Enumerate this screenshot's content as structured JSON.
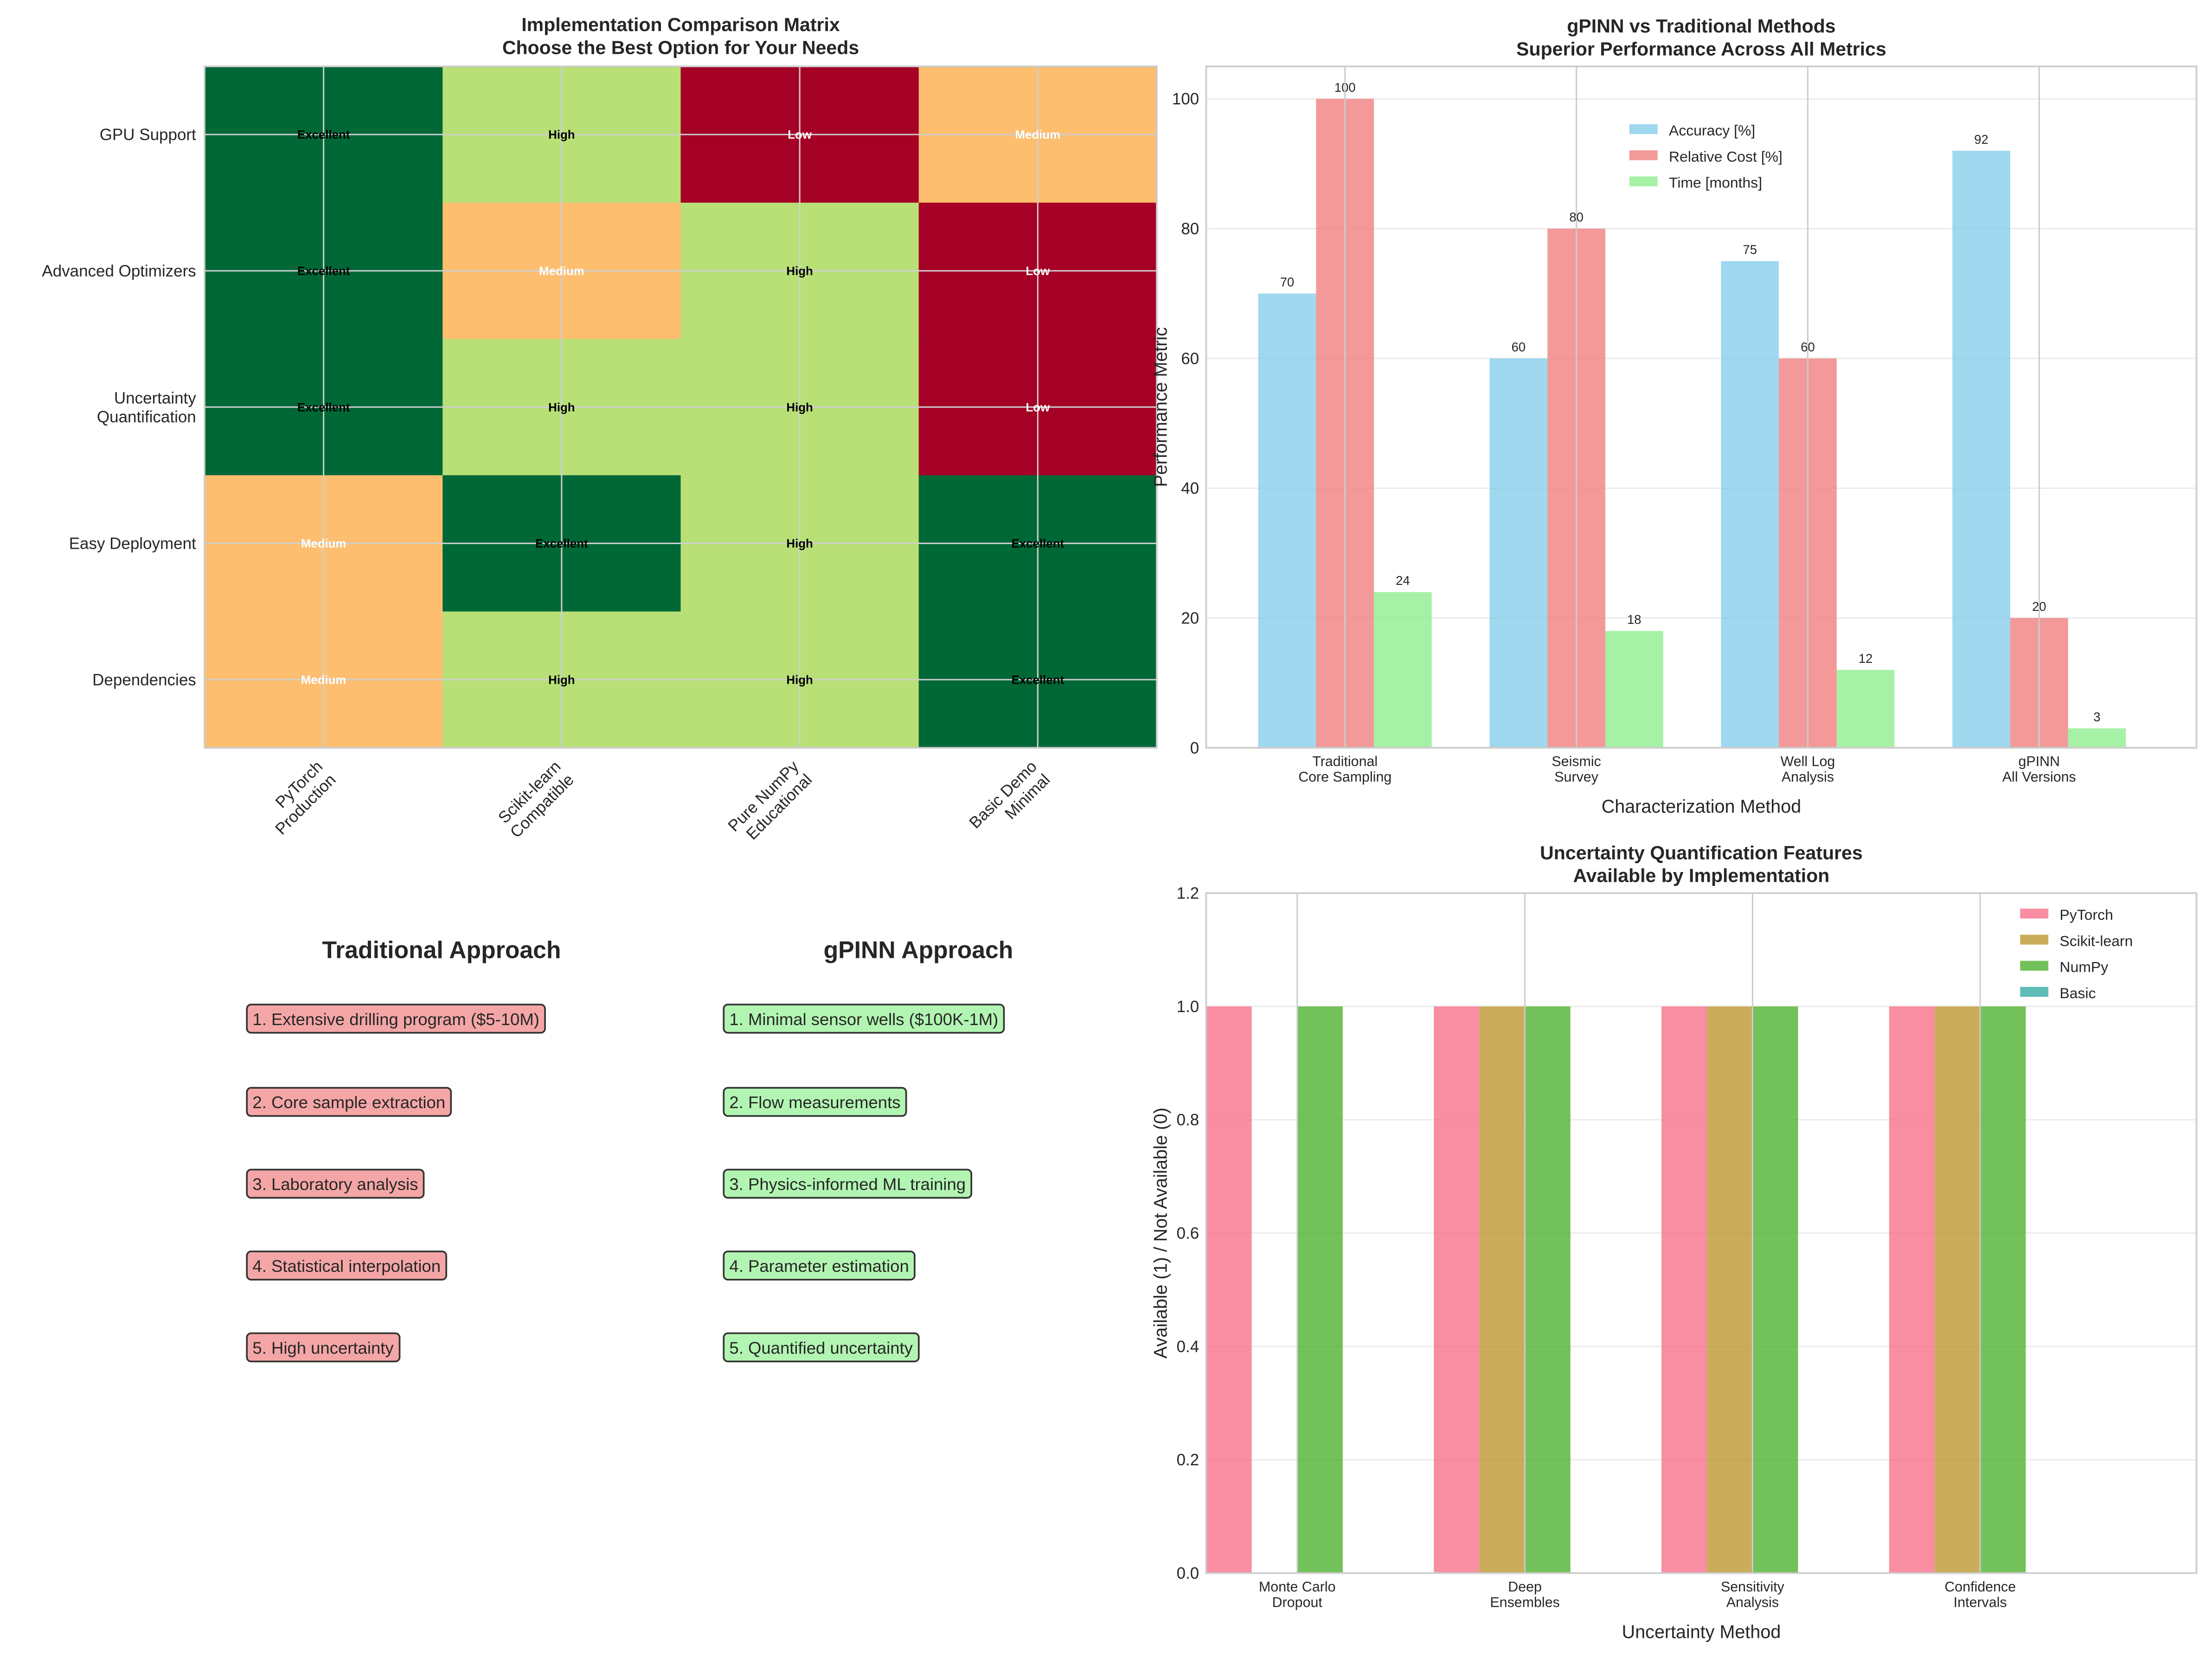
{
  "chart_data": [
    {
      "type": "heatmap",
      "title": "Implementation Comparison Matrix\nChoose the Best Option for Your Needs",
      "rows": [
        "GPU Support",
        "Advanced Optimizers",
        "Uncertainty\nQuantification",
        "Easy Deployment",
        "Dependencies"
      ],
      "columns": [
        "PyTorch\nProduction",
        "Scikit-learn\nCompatible",
        "Pure NumPy\nEducational",
        "Basic Demo\nMinimal"
      ],
      "cells": [
        [
          "Excellent",
          "High",
          "Low",
          "Medium"
        ],
        [
          "Excellent",
          "Medium",
          "High",
          "Low"
        ],
        [
          "Excellent",
          "High",
          "High",
          "Low"
        ],
        [
          "Medium",
          "Excellent",
          "High",
          "Excellent"
        ],
        [
          "Medium",
          "High",
          "High",
          "Excellent"
        ]
      ],
      "colormap": "RdYlGn",
      "level_colors": {
        "Low": "#a50026",
        "Medium": "#fdbe6f",
        "High": "#b8e076",
        "Excellent": "#006837"
      },
      "level_text_colors": {
        "Low": "#ffffff",
        "Medium": "#ffffff",
        "High": "#000000",
        "Excellent": "#000000"
      },
      "grid": true
    },
    {
      "type": "bar",
      "title": "gPINN vs Traditional Methods\nSuperior Performance Across All Metrics",
      "xlabel": "Characterization Method",
      "ylabel": "Performance Metric",
      "categories": [
        "Traditional\nCore Sampling",
        "Seismic\nSurvey",
        "Well Log\nAnalysis",
        "gPINN\nAll Versions"
      ],
      "series": [
        {
          "name": "Accuracy [%]",
          "values": [
            70,
            60,
            75,
            92
          ],
          "color": "#87ceeb"
        },
        {
          "name": "Relative Cost [%]",
          "values": [
            100,
            80,
            60,
            20
          ],
          "color": "#f08080"
        },
        {
          "name": "Time [months]",
          "values": [
            24,
            18,
            12,
            3
          ],
          "color": "#90ee90"
        }
      ],
      "yticks": [
        0,
        20,
        40,
        60,
        80,
        100
      ],
      "ylim": [
        0,
        105
      ],
      "data_labels": true,
      "legend": "top-center",
      "grid": true
    },
    {
      "type": "bar",
      "title": "Uncertainty Quantification Features\nAvailable by Implementation",
      "xlabel": "Uncertainty Method",
      "ylabel": "Available (1) / Not Available (0)",
      "categories": [
        "Monte Carlo\nDropout",
        "Deep\nEnsembles",
        "Sensitivity\nAnalysis",
        "Confidence\nIntervals"
      ],
      "series": [
        {
          "name": "PyTorch",
          "values": [
            1,
            1,
            1,
            1
          ],
          "color": "#f77189"
        },
        {
          "name": "Scikit-learn",
          "values": [
            0,
            1,
            1,
            1
          ],
          "color": "#bb9832"
        },
        {
          "name": "NumPy",
          "values": [
            1,
            1,
            1,
            1
          ],
          "color": "#50b131"
        },
        {
          "name": "Basic",
          "values": [
            0,
            0,
            0,
            0
          ],
          "color": "#36ada4"
        }
      ],
      "yticks": [
        "0.0",
        "0.2",
        "0.4",
        "0.6",
        "0.8",
        "1.0",
        "1.2"
      ],
      "ylim": [
        0,
        1.2
      ],
      "legend": "top-right",
      "grid": true
    }
  ],
  "comparison": {
    "traditional": {
      "heading": "Traditional Approach",
      "heading_color": "#ff0000",
      "box_color": "#f4a6a6",
      "steps": [
        "1. Extensive drilling program ($5-10M)",
        "2. Core sample extraction",
        "3. Laboratory analysis",
        "4. Statistical interpolation",
        "5. High uncertainty"
      ]
    },
    "gpinn": {
      "heading": "gPINN Approach",
      "heading_color": "#008000",
      "box_color": "#b2f5b2",
      "steps": [
        "1. Minimal sensor wells ($100K-1M)",
        "2. Flow measurements",
        "3. Physics-informed ML training",
        "4. Parameter estimation",
        "5. Quantified uncertainty"
      ]
    }
  }
}
